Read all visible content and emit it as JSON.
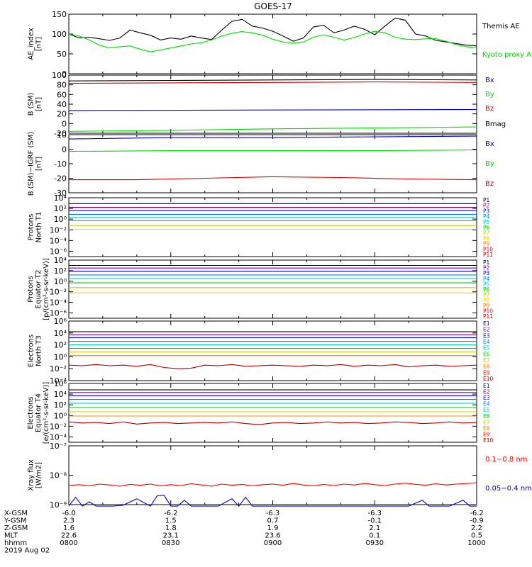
{
  "title": "GOES-17",
  "chart_data": [
    {
      "type": "line",
      "panel": "ae",
      "ylabel": [
        "AE_index",
        "[nT]"
      ],
      "ylim": [
        0,
        150
      ],
      "yticks": [
        "0",
        "50",
        "100",
        "150"
      ],
      "xlim": [
        0,
        120
      ],
      "series": [
        {
          "name": "Themis AE",
          "color": "#000000",
          "x": [
            0,
            3,
            6,
            9,
            12,
            15,
            18,
            21,
            24,
            27,
            30,
            33,
            36,
            39,
            42,
            45,
            48,
            51,
            54,
            57,
            60,
            63,
            66,
            69,
            72,
            75,
            78,
            81,
            84,
            87,
            90,
            93,
            96,
            99,
            102,
            105,
            108,
            111,
            114,
            117,
            120
          ],
          "y": [
            100,
            90,
            92,
            88,
            84,
            90,
            110,
            103,
            97,
            85,
            90,
            87,
            95,
            90,
            86,
            110,
            132,
            137,
            120,
            115,
            107,
            95,
            82,
            90,
            118,
            122,
            103,
            110,
            120,
            112,
            98,
            120,
            140,
            135,
            100,
            95,
            84,
            80,
            76,
            72,
            70
          ]
        },
        {
          "name": "Kyoto proxy AE",
          "color": "#00dd00",
          "x": [
            0,
            3,
            6,
            9,
            12,
            15,
            18,
            21,
            24,
            27,
            30,
            33,
            36,
            39,
            42,
            45,
            48,
            51,
            54,
            57,
            60,
            63,
            66,
            69,
            72,
            75,
            78,
            81,
            84,
            87,
            90,
            93,
            96,
            99,
            102,
            105,
            108,
            111,
            114,
            117,
            120
          ],
          "y": [
            100,
            95,
            85,
            72,
            65,
            68,
            70,
            62,
            55,
            60,
            65,
            70,
            75,
            78,
            85,
            95,
            102,
            106,
            103,
            97,
            87,
            80,
            77,
            80,
            92,
            98,
            92,
            85,
            91,
            100,
            107,
            103,
            92,
            87,
            86,
            88,
            88,
            82,
            73,
            68,
            65
          ]
        }
      ],
      "legend": [
        "Kyoto proxy AE",
        "Themis AE"
      ]
    },
    {
      "type": "line",
      "panel": "bsm",
      "ylabel": [
        "B (SM)",
        "[nT]"
      ],
      "ylim": [
        -20,
        100
      ],
      "yticks": [
        "-20",
        "0",
        "20",
        "40",
        "60",
        "80",
        "100"
      ],
      "xlim": [
        0,
        120
      ],
      "series": [
        {
          "name": "Bx",
          "color": "#0000cc",
          "x": [
            0,
            60,
            120
          ],
          "y": [
            27,
            28,
            29
          ]
        },
        {
          "name": "By",
          "color": "#00dd00",
          "x": [
            0,
            30,
            60,
            90,
            120
          ],
          "y": [
            -16,
            -14,
            -11,
            -9,
            -7
          ]
        },
        {
          "name": "Bz",
          "color": "#cc0000",
          "x": [
            0,
            30,
            60,
            90,
            120
          ],
          "y": [
            83,
            84,
            85,
            86,
            85
          ]
        },
        {
          "name": "Bmag",
          "color": "#000000",
          "x": [
            0,
            30,
            60,
            90,
            120
          ],
          "y": [
            88,
            89,
            90,
            91,
            90
          ]
        }
      ],
      "legend": [
        "Bx",
        "By",
        "Bz",
        "Bmag"
      ]
    },
    {
      "type": "line",
      "panel": "bigrf",
      "ylabel": [
        "B (SM)−IGRF (SM)",
        "[nT]"
      ],
      "ylim": [
        -30,
        10
      ],
      "yticks": [
        "-30",
        "-20",
        "-10",
        "0",
        "10"
      ],
      "xlim": [
        0,
        120
      ],
      "series": [
        {
          "name": "Bx",
          "color": "#0000cc",
          "x": [
            0,
            30,
            60,
            90,
            120
          ],
          "y": [
            7,
            8,
            8,
            8.5,
            9
          ]
        },
        {
          "name": "By",
          "color": "#00dd00",
          "x": [
            0,
            30,
            60,
            90,
            120
          ],
          "y": [
            -1.5,
            -1,
            -1,
            -1,
            -0.5
          ]
        },
        {
          "name": "Bz",
          "color": "#cc0000",
          "x": [
            0,
            20,
            40,
            60,
            80,
            100,
            120
          ],
          "y": [
            -21,
            -21,
            -20,
            -19,
            -19.5,
            -20.5,
            -21
          ]
        }
      ],
      "legend": [
        "Bx",
        "By",
        "Bz"
      ]
    },
    {
      "type": "line",
      "panel": "pnt1",
      "scale": "log",
      "ylabel": [
        "Protons",
        "North T1"
      ],
      "ylim": [
        -7,
        4
      ],
      "yticks": [
        "10⁴",
        "10²",
        "10⁰",
        "10⁻²",
        "10⁻⁴",
        "10⁻⁶"
      ],
      "ytick_exp": [
        4,
        2,
        0,
        -2,
        -4,
        -6
      ],
      "xlim": [
        0,
        120
      ],
      "series": [
        {
          "name": "P1",
          "color": "#000000",
          "level": 2.9
        },
        {
          "name": "P2",
          "color": "#800080",
          "level": 2.2
        },
        {
          "name": "P3",
          "color": "#0000cc",
          "level": 1.6
        },
        {
          "name": "P4",
          "color": "#0080ff",
          "level": 0.9
        },
        {
          "name": "P5",
          "color": "#00cccc",
          "level": 0.3
        },
        {
          "name": "P6",
          "color": "#00cc00",
          "level": -0.3
        },
        {
          "name": "P7",
          "color": "#c8c800",
          "level": -1.2
        },
        {
          "name": "P8",
          "color": "#ffcc00",
          "level": -1.9
        },
        {
          "name": "P9",
          "color": "#ff8000"
        },
        {
          "name": "P10",
          "color": "#ff0000"
        },
        {
          "name": "P11",
          "color": "#b00000"
        }
      ]
    },
    {
      "type": "line",
      "panel": "pet2",
      "scale": "log",
      "ylabel": [
        "Protons",
        "Equator T2",
        "[p/(cm²-s-sr-keV)]"
      ],
      "ylim": [
        -7,
        4
      ],
      "yticks": [
        "10⁴",
        "10²",
        "10⁰",
        "10⁻²",
        "10⁻⁴",
        "10⁻⁶"
      ],
      "ytick_exp": [
        4,
        2,
        0,
        -2,
        -4,
        -6
      ],
      "xlim": [
        0,
        120
      ],
      "series": [
        {
          "name": "P1",
          "color": "#000000",
          "level": 3.0
        },
        {
          "name": "P2",
          "color": "#800080",
          "level": 2.5
        },
        {
          "name": "P3",
          "color": "#0000cc",
          "level": 1.9
        },
        {
          "name": "P4",
          "color": "#0080ff",
          "level": 1.2
        },
        {
          "name": "P5",
          "color": "#00cccc",
          "level": 0.5
        },
        {
          "name": "P6",
          "color": "#00cc00",
          "level": -0.3
        },
        {
          "name": "P7",
          "color": "#c8c800",
          "level": -1.2
        },
        {
          "name": "P8",
          "color": "#ffcc00",
          "level": -2.2
        },
        {
          "name": "P9",
          "color": "#ff8000"
        },
        {
          "name": "P10",
          "color": "#ff0000"
        },
        {
          "name": "P11",
          "color": "#b00000"
        }
      ]
    },
    {
      "type": "line",
      "panel": "ent3",
      "scale": "log",
      "ylabel": [
        "Electrons",
        "North T3"
      ],
      "ylim": [
        -4,
        6
      ],
      "yticks": [
        "10⁶",
        "10⁴",
        "10²",
        "10⁰",
        "10⁻²",
        "10⁻⁴"
      ],
      "ytick_exp": [
        6,
        4,
        2,
        0,
        -2,
        -4
      ],
      "xlim": [
        0,
        120
      ],
      "series": [
        {
          "name": "E1",
          "color": "#000000",
          "level": 4.2
        },
        {
          "name": "E2",
          "color": "#800080",
          "level": 3.7
        },
        {
          "name": "E3",
          "color": "#0000cc",
          "level": 3.2
        },
        {
          "name": "E4",
          "color": "#0080ff",
          "level": 2.6
        },
        {
          "name": "E5",
          "color": "#00cccc",
          "level": 2.0
        },
        {
          "name": "E6",
          "color": "#00cc00",
          "level": 1.4
        },
        {
          "name": "E7",
          "color": "#c8c800",
          "level": 0.8
        },
        {
          "name": "E8",
          "color": "#ff8000",
          "level": 0.2
        },
        {
          "name": "E9",
          "color": "#ff0000"
        },
        {
          "name": "E10",
          "color": "#b00000",
          "x": [
            0,
            4,
            8,
            12,
            16,
            20,
            24,
            28,
            32,
            36,
            40,
            44,
            48,
            52,
            56,
            60,
            64,
            68,
            72,
            76,
            80,
            84,
            88,
            92,
            96,
            100,
            104,
            108,
            112,
            116,
            120
          ],
          "y": [
            -1.4,
            -1.5,
            -1.3,
            -1.5,
            -1.4,
            -1.6,
            -1.3,
            -1.8,
            -2.0,
            -1.9,
            -1.4,
            -1.5,
            -1.3,
            -1.6,
            -1.5,
            -1.4,
            -1.5,
            -1.6,
            -1.4,
            -1.5,
            -1.3,
            -1.6,
            -1.4,
            -1.5,
            -1.3,
            -1.7,
            -1.5,
            -1.4,
            -1.6,
            -1.5,
            -1.4
          ]
        }
      ]
    },
    {
      "type": "line",
      "panel": "eet4",
      "scale": "log",
      "ylabel": [
        "Electrons",
        "Equator T4",
        "[e/(cm²-s-sr-keV)]"
      ],
      "ylim": [
        -5,
        6
      ],
      "yticks": [
        "10⁶",
        "10⁴",
        "10²",
        "10⁰",
        "10⁻²",
        "10⁻⁴"
      ],
      "ytick_exp": [
        6,
        4,
        2,
        0,
        -2,
        -4
      ],
      "xlim": [
        0,
        120
      ],
      "series": [
        {
          "name": "E1",
          "color": "#000000",
          "level": 4.8
        },
        {
          "name": "E2",
          "color": "#800080",
          "level": 4.3
        },
        {
          "name": "E3",
          "color": "#0000cc",
          "level": 3.7
        },
        {
          "name": "E4",
          "color": "#0080ff",
          "level": 3.0
        },
        {
          "name": "E5",
          "color": "#00cccc",
          "level": 2.3
        },
        {
          "name": "E6",
          "color": "#00cc00",
          "level": 1.5
        },
        {
          "name": "E7",
          "color": "#c8c800",
          "level": 0.7
        },
        {
          "name": "E8",
          "color": "#ff8000",
          "level": -0.1
        },
        {
          "name": "E9",
          "color": "#ff0000"
        },
        {
          "name": "E10",
          "color": "#b00000",
          "x": [
            0,
            4,
            8,
            12,
            16,
            20,
            24,
            28,
            32,
            36,
            40,
            44,
            48,
            52,
            56,
            60,
            64,
            68,
            72,
            76,
            80,
            84,
            88,
            92,
            96,
            100,
            104,
            108,
            112,
            116,
            120
          ],
          "y": [
            -1.2,
            -1.4,
            -1.3,
            -1.5,
            -1.2,
            -1.6,
            -1.4,
            -1.3,
            -1.5,
            -1.4,
            -1.3,
            -1.4,
            -1.2,
            -1.5,
            -1.7,
            -1.4,
            -1.3,
            -1.5,
            -1.4,
            -1.2,
            -1.4,
            -1.3,
            -1.5,
            -1.4,
            -1.2,
            -1.3,
            -1.5,
            -1.4,
            -1.2,
            -1.4,
            -1.3
          ]
        }
      ]
    },
    {
      "type": "line",
      "panel": "xray",
      "scale": "log",
      "ylabel": [
        "Xray flux",
        "[W/m2]"
      ],
      "ylim": [
        -9,
        -7
      ],
      "yticks": [
        "10⁻⁷",
        "10⁻⁸",
        "10⁻⁹"
      ],
      "ytick_exp": [
        -7,
        -8,
        -9
      ],
      "xlim": [
        0,
        120
      ],
      "series": [
        {
          "name": "0.1−0.8 nm",
          "color": "#ff0000",
          "x": [
            0,
            3,
            6,
            9,
            12,
            15,
            18,
            21,
            24,
            27,
            30,
            33,
            36,
            39,
            42,
            45,
            48,
            51,
            54,
            57,
            60,
            63,
            66,
            69,
            72,
            75,
            78,
            81,
            84,
            87,
            90,
            93,
            96,
            99,
            102,
            105,
            108,
            111,
            114,
            117,
            120
          ],
          "y": [
            -8.35,
            -8.32,
            -8.36,
            -8.3,
            -8.33,
            -8.37,
            -8.31,
            -8.34,
            -8.3,
            -8.36,
            -8.32,
            -8.35,
            -8.29,
            -8.33,
            -8.37,
            -8.3,
            -8.34,
            -8.31,
            -8.36,
            -8.32,
            -8.3,
            -8.34,
            -8.28,
            -8.33,
            -8.36,
            -8.31,
            -8.35,
            -8.3,
            -8.33,
            -8.28,
            -8.32,
            -8.35,
            -8.3,
            -8.27,
            -8.31,
            -8.34,
            -8.29,
            -8.33,
            -8.3,
            -8.28,
            -8.26
          ]
        },
        {
          "name": "0.05−0.4 nm",
          "color": "#0000cc",
          "x": [
            0,
            2,
            4,
            6,
            8,
            10,
            13,
            16,
            20,
            24,
            26,
            28,
            30,
            32,
            34,
            36,
            40,
            44,
            48,
            50,
            52,
            54,
            58,
            60,
            62,
            64,
            70,
            76,
            78,
            80,
            84,
            88,
            92,
            96,
            100,
            104,
            106,
            108,
            112,
            116,
            118,
            120
          ],
          "y": [
            -9.05,
            -8.75,
            -9.05,
            -8.9,
            -9.05,
            -9.05,
            -9.05,
            -9.02,
            -8.8,
            -9.05,
            -8.7,
            -8.68,
            -9.05,
            -9.05,
            -8.85,
            -9.05,
            -9.05,
            -9.05,
            -8.8,
            -9.05,
            -8.75,
            -9.05,
            -9.05,
            -9.05,
            -9.05,
            -9.05,
            -9.05,
            -9.05,
            -9.05,
            -9.05,
            -9.05,
            -9.05,
            -9.05,
            -9.05,
            -9.05,
            -8.85,
            -9.05,
            -9.05,
            -9.05,
            -8.85,
            -9.05,
            -9.05
          ]
        }
      ],
      "legend": [
        "0.1−0.8 nm",
        "0.05−0.4 nm"
      ]
    }
  ],
  "x_axis": {
    "rows": [
      {
        "label": "X-GSM",
        "values": [
          "-6.0",
          "-6.2",
          "-6.3",
          "-6.3",
          "-6.2"
        ]
      },
      {
        "label": "Y-GSM",
        "values": [
          "2.3",
          "1.5",
          "0.7",
          "-0.1",
          "-0.9"
        ]
      },
      {
        "label": "Z-GSM",
        "values": [
          "1.6",
          "1.8",
          "1.9",
          "2.1",
          "2.2"
        ]
      },
      {
        "label": "MLT",
        "values": [
          "22.6",
          "23.1",
          "23.6",
          "0.1",
          "0.5"
        ]
      },
      {
        "label": "hhmm",
        "values": [
          "0800",
          "0830",
          "0900",
          "0930",
          "1000"
        ]
      }
    ],
    "date": "2019 Aug 02"
  }
}
